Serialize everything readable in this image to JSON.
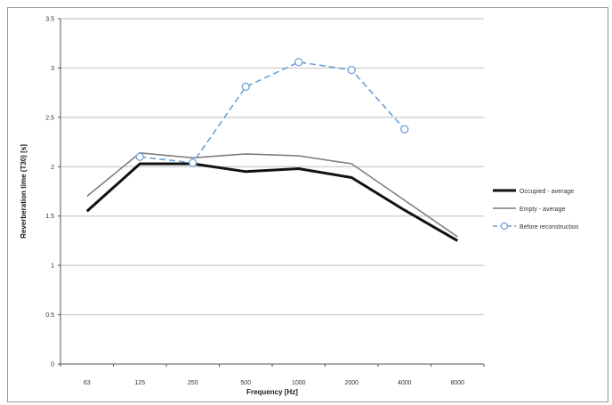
{
  "chart_data": {
    "type": "line",
    "categories": [
      "63",
      "125",
      "250",
      "500",
      "1000",
      "2000",
      "4000",
      "8000"
    ],
    "ylabel": "Reverberation time (T30) [s]",
    "xlabel": "Frequency [Hz]",
    "ylim": [
      0,
      3.5
    ],
    "yticks": [
      "0",
      "0.5",
      "1",
      "1.5",
      "2",
      "2.5",
      "3",
      "3.5"
    ],
    "grid": true,
    "legend_position": "right",
    "series": [
      {
        "name": "Occupied - average",
        "values": [
          1.55,
          2.03,
          2.03,
          1.95,
          1.98,
          1.89,
          1.56,
          1.25
        ],
        "color": "#111111",
        "style": "solid-thick"
      },
      {
        "name": "Empty - average",
        "values": [
          1.7,
          2.14,
          2.09,
          2.13,
          2.11,
          2.03,
          1.66,
          1.29
        ],
        "color": "#7f7f7f",
        "style": "solid-thin"
      },
      {
        "name": "Before reconstruction",
        "values": [
          null,
          2.1,
          2.04,
          2.81,
          3.06,
          2.98,
          2.38,
          null
        ],
        "color": "#6f9fd8",
        "style": "dashed-markers"
      }
    ]
  }
}
